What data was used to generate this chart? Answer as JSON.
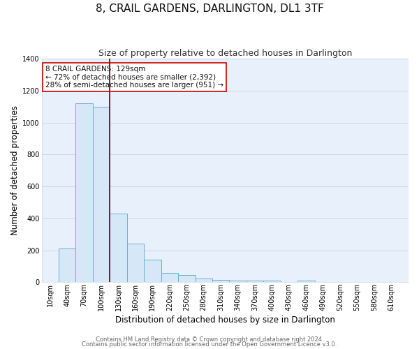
{
  "title": "8, CRAIL GARDENS, DARLINGTON, DL1 3TF",
  "subtitle": "Size of property relative to detached houses in Darlington",
  "xlabel": "Distribution of detached houses by size in Darlington",
  "ylabel": "Number of detached properties",
  "bar_color": "#d6e8f7",
  "bar_edge_color": "#6aaed6",
  "background_color": "#e8f0fb",
  "fig_background_color": "#ffffff",
  "grid_color": "#c8d8e8",
  "bin_labels": [
    "10sqm",
    "40sqm",
    "70sqm",
    "100sqm",
    "130sqm",
    "160sqm",
    "190sqm",
    "220sqm",
    "250sqm",
    "280sqm",
    "310sqm",
    "340sqm",
    "370sqm",
    "400sqm",
    "430sqm",
    "460sqm",
    "490sqm",
    "520sqm",
    "550sqm",
    "580sqm",
    "610sqm"
  ],
  "bar_heights": [
    0,
    210,
    1120,
    1100,
    430,
    240,
    140,
    60,
    45,
    25,
    15,
    10,
    10,
    8,
    0,
    8,
    0,
    0,
    0,
    0,
    0
  ],
  "bin_left_edges": [
    10,
    40,
    70,
    100,
    130,
    160,
    190,
    220,
    250,
    280,
    310,
    340,
    370,
    400,
    430,
    460,
    490,
    520,
    550,
    580,
    610
  ],
  "bin_width": 30,
  "ylim": [
    0,
    1400
  ],
  "yticks": [
    0,
    200,
    400,
    600,
    800,
    1000,
    1200,
    1400
  ],
  "vline_x": 130,
  "vline_color": "#990000",
  "annotation_text": "8 CRAIL GARDENS: 129sqm\n← 72% of detached houses are smaller (2,392)\n28% of semi-detached houses are larger (951) →",
  "annotation_box_color": "#ffffff",
  "annotation_box_edge": "#cc0000",
  "footer_line1": "Contains HM Land Registry data © Crown copyright and database right 2024.",
  "footer_line2": "Contains public sector information licensed under the Open Government Licence v3.0.",
  "title_fontsize": 11,
  "subtitle_fontsize": 9,
  "axis_label_fontsize": 8.5,
  "tick_fontsize": 7,
  "annotation_fontsize": 7.5,
  "footer_fontsize": 6
}
